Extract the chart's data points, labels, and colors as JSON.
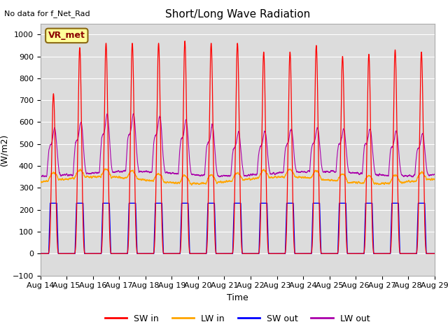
{
  "title": "Short/Long Wave Radiation",
  "xlabel": "Time",
  "ylabel": "(W/m2)",
  "annotation": "No data for f_Net_Rad",
  "legend_label": "VR_met",
  "ylim": [
    -100,
    1050
  ],
  "xlim": [
    0,
    15
  ],
  "x_tick_labels": [
    "Aug 14",
    "Aug 15",
    "Aug 16",
    "Aug 17",
    "Aug 18",
    "Aug 19",
    "Aug 20",
    "Aug 21",
    "Aug 22",
    "Aug 23",
    "Aug 24",
    "Aug 25",
    "Aug 26",
    "Aug 27",
    "Aug 28",
    "Aug 29"
  ],
  "num_days": 15,
  "colors": {
    "SW_in": "#FF0000",
    "LW_in": "#FFA500",
    "SW_out": "#0000FF",
    "LW_out": "#AA00AA"
  },
  "bg_color": "#DCDCDC",
  "legend_items": [
    "SW in",
    "LW in",
    "SW out",
    "LW out"
  ],
  "SW_in_peaks": [
    730,
    940,
    960,
    960,
    960,
    970,
    960,
    960,
    920,
    920,
    950,
    900,
    910,
    930,
    920
  ],
  "LW_out_peaks": [
    560,
    580,
    605,
    605,
    600,
    590,
    575,
    545,
    545,
    545,
    545,
    545,
    555,
    550,
    540
  ]
}
